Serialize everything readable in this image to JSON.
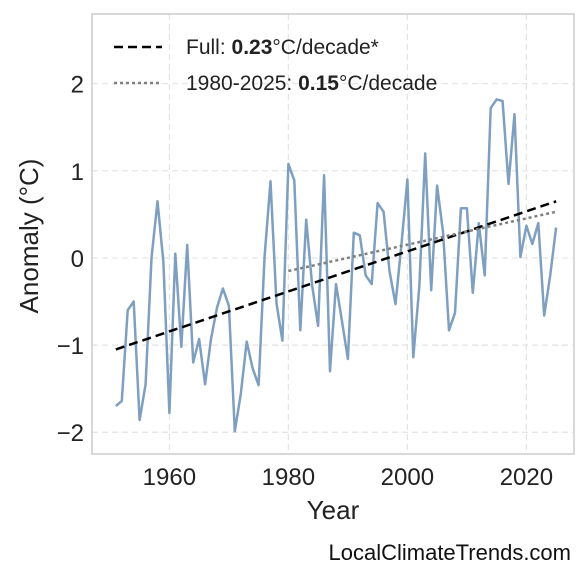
{
  "chart_data": {
    "type": "line",
    "xlabel": "Year",
    "ylabel": "Anomaly (°C)",
    "xlim": [
      1947,
      2028
    ],
    "ylim": [
      -2.25,
      2.8
    ],
    "xticks": [
      1960,
      1980,
      2000,
      2020
    ],
    "yticks": [
      -2,
      -1,
      0,
      1,
      2
    ],
    "ytick_labels": [
      "−2",
      "−1",
      "0",
      "1",
      "2"
    ],
    "grid": true,
    "legend_position": "top-left",
    "colors": {
      "series": "#7f9fc0",
      "full_trend": "#000000",
      "recent_trend": "#808080"
    },
    "series": [
      {
        "x": [
          1951,
          1952,
          1953,
          1954,
          1955,
          1956,
          1957,
          1958,
          1959,
          1960,
          1961,
          1962,
          1963,
          1964,
          1965,
          1966,
          1967,
          1968,
          1969,
          1970,
          1971,
          1972,
          1973,
          1974,
          1975,
          1976,
          1977,
          1978,
          1979,
          1980,
          1981,
          1982,
          1983,
          1984,
          1985,
          1986,
          1987,
          1988,
          1989,
          1990,
          1991,
          1992,
          1993,
          1994,
          1995,
          1996,
          1997,
          1998,
          1999,
          2000,
          2001,
          2002,
          2003,
          2004,
          2005,
          2006,
          2007,
          2008,
          2009,
          2010,
          2011,
          2012,
          2013,
          2014,
          2015,
          2016,
          2017,
          2018,
          2019,
          2020,
          2021,
          2022,
          2023,
          2024,
          2025
        ],
        "y": [
          -1.7,
          -1.64,
          -0.6,
          -0.5,
          -1.86,
          -1.45,
          0.0,
          0.65,
          -0.05,
          -1.78,
          0.05,
          -1.02,
          0.15,
          -1.2,
          -0.93,
          -1.45,
          -0.93,
          -0.57,
          -0.35,
          -0.55,
          -1.99,
          -1.56,
          -0.96,
          -1.27,
          -1.46,
          0.02,
          0.88,
          -0.52,
          -0.95,
          1.08,
          0.89,
          -0.83,
          0.44,
          -0.32,
          -0.78,
          0.95,
          -1.3,
          -0.3,
          -0.72,
          -1.16,
          0.29,
          0.26,
          -0.2,
          -0.3,
          0.63,
          0.53,
          -0.15,
          -0.53,
          0.15,
          0.9,
          -1.14,
          -0.33,
          1.2,
          -0.37,
          0.83,
          0.29,
          -0.83,
          -0.63,
          0.57,
          0.57,
          -0.4,
          0.4,
          -0.2,
          1.72,
          1.82,
          1.8,
          0.85,
          1.65,
          0.01,
          0.37,
          0.16,
          0.4,
          -0.66,
          -0.2,
          0.35
        ]
      }
    ],
    "trends": [
      {
        "style": "dashed",
        "x": [
          1951,
          2025
        ],
        "y": [
          -1.05,
          0.65
        ]
      },
      {
        "style": "dotted",
        "x": [
          1980,
          2025
        ],
        "y": [
          -0.15,
          0.53
        ]
      }
    ]
  },
  "legend": {
    "full_prefix": "Full: ",
    "full_value": "0.23",
    "full_suffix": "°C/decade*",
    "recent_prefix": "1980-2025: ",
    "recent_value": "0.15",
    "recent_suffix": "°C/decade"
  },
  "watermark": "LocalClimateTrends.com"
}
